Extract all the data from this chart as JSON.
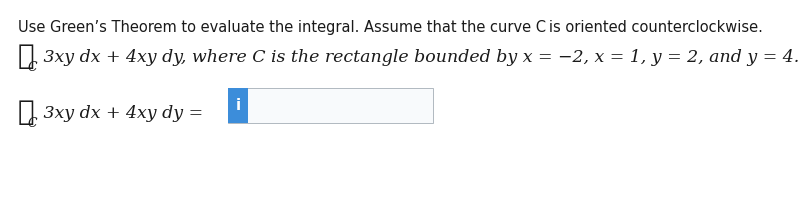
{
  "background_color": "#ffffff",
  "line1_text": "Use Green’s Theorem to evaluate the integral. Assume that the curve C is oriented counterclockwise.",
  "line2_integral": "∮",
  "line2_subscript": "C",
  "line2_body": " 3xy dx + 4xy dy, where C is the rectangle bounded by x = −2, x = 1, y = 2, and y = 4.",
  "ans_integral": "∮",
  "ans_subscript": "C",
  "ans_body": " 3xy dx + 4xy dy = ",
  "cursor_char": "i",
  "cursor_bg": "#3c8dda",
  "cursor_fg": "#ffffff",
  "box_border": "#b0b8c0",
  "box_bg": "#f8fafc",
  "text_color": "#1a1a1a",
  "font_size_line1": 10.5,
  "font_size_math": 12.5,
  "font_size_integral": 20,
  "font_size_subscript": 9
}
